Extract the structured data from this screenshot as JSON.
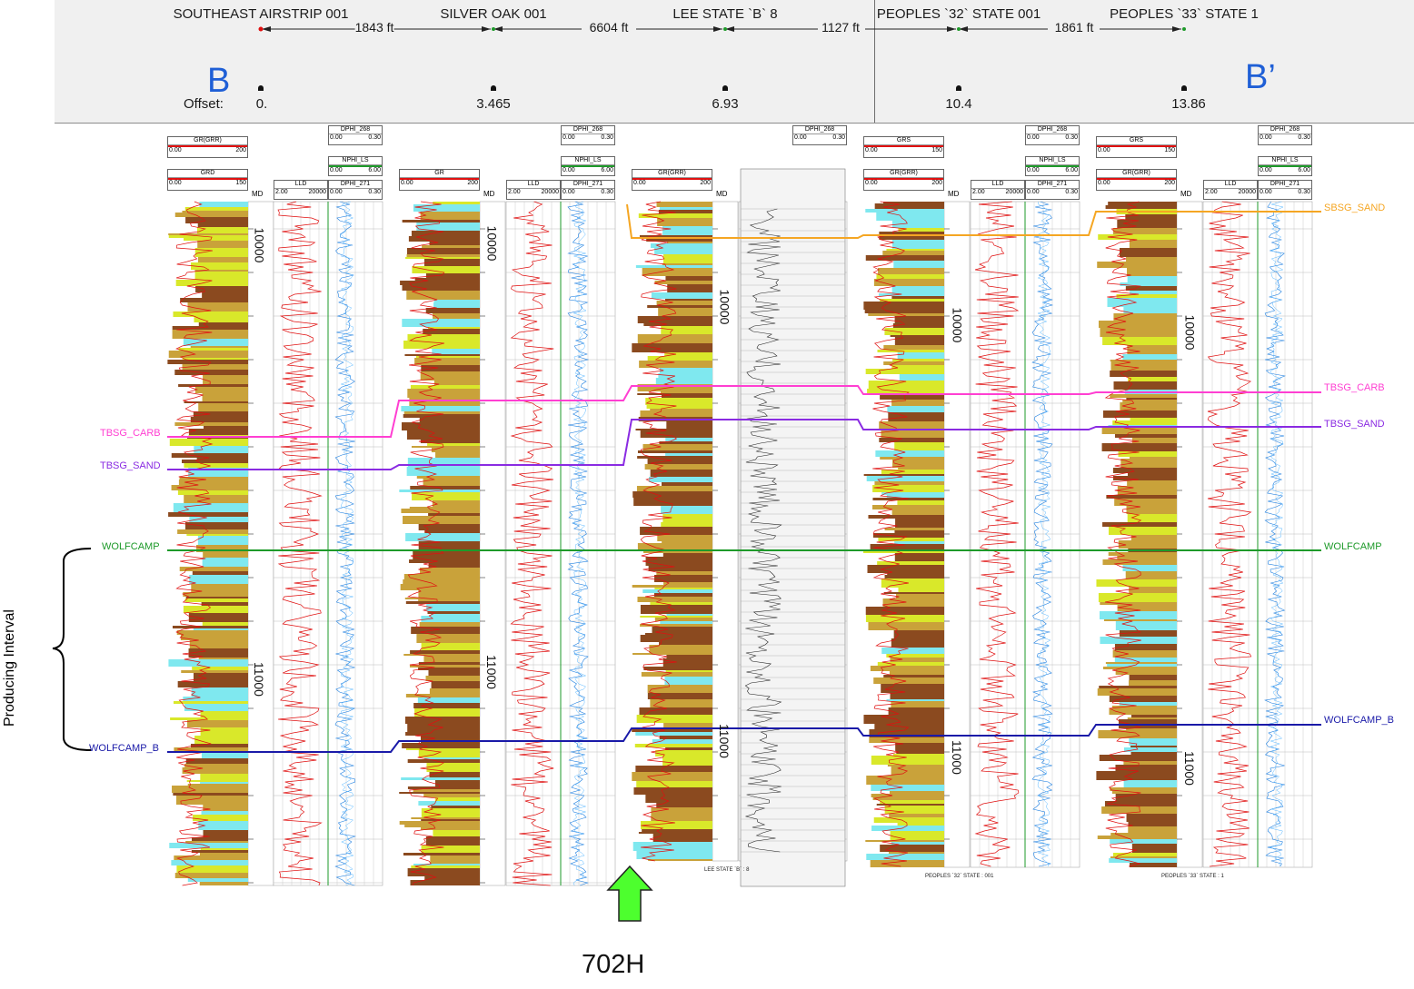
{
  "header": {
    "wells": [
      {
        "name": "SOUTHEAST AIRSTRIP 001",
        "offset": "0."
      },
      {
        "name": "SILVER OAK 001",
        "offset": "3.465"
      },
      {
        "name": "LEE STATE `B` 8",
        "offset": "6.93"
      },
      {
        "name": "PEOPLES `32` STATE 001",
        "offset": "10.4"
      },
      {
        "name": "PEOPLES `33` STATE 1",
        "offset": "13.86"
      }
    ],
    "distances": [
      "1843 ft",
      "6604 ft",
      "1127 ft",
      "1861 ft"
    ],
    "offset_label": "Offset:",
    "section_start": "B",
    "section_end": "B’"
  },
  "track_headers": {
    "gr_grr": {
      "title": "GR(GRR)",
      "min": "0.00",
      "max": "200"
    },
    "grd": {
      "title": "GRD",
      "min": "0.00",
      "max": "150"
    },
    "gr": {
      "title": "GR",
      "min": "0.00",
      "max": "200"
    },
    "grs": {
      "title": "GRS",
      "min": "0.00",
      "max": "150"
    },
    "lld": {
      "title": "LLD",
      "min": "2.00",
      "max": "20000"
    },
    "dphi_268": {
      "title": "DPHI_268",
      "min": "0.00",
      "max": "0.30"
    },
    "nphi_ls": {
      "title": "NPHI_LS",
      "min": "0.00",
      "max": "6.00"
    },
    "dphi_271": {
      "title": "DPHI_271",
      "min": "0.00",
      "max": "0.30"
    },
    "md": "MD"
  },
  "depths": [
    "10000",
    "11000"
  ],
  "picks": {
    "sbsg_sand": {
      "label": "SBSG_SAND",
      "color": "#f5a623"
    },
    "tbsg_carb": {
      "label": "TBSG_CARB",
      "color": "#ff3fd2"
    },
    "tbsg_sand": {
      "label": "TBSG_SAND",
      "color": "#8a2be2"
    },
    "wolfcamp": {
      "label": "WOLFCAMP",
      "color": "#1e9a2a"
    },
    "wolfcamp_b": {
      "label": "WOLFCAMP_B",
      "color": "#1a1aa8"
    }
  },
  "footers": {
    "lee": "LEE STATE `B` : 8",
    "p32": "PEOPLES `32` STATE : 001",
    "p33": "PEOPLES `33` STATE : 1"
  },
  "annotations": {
    "producing_interval": "Producing Interval",
    "target_well": "702H"
  },
  "colors": {
    "gr_curve": "#e01010",
    "porosity_curve": "#1e7fe0",
    "shale": "#8b4a1f",
    "sand": "#d9e82a",
    "tight": "#c9a23a",
    "porous": "#7fe8ef",
    "arrow": "#4dff2e"
  }
}
